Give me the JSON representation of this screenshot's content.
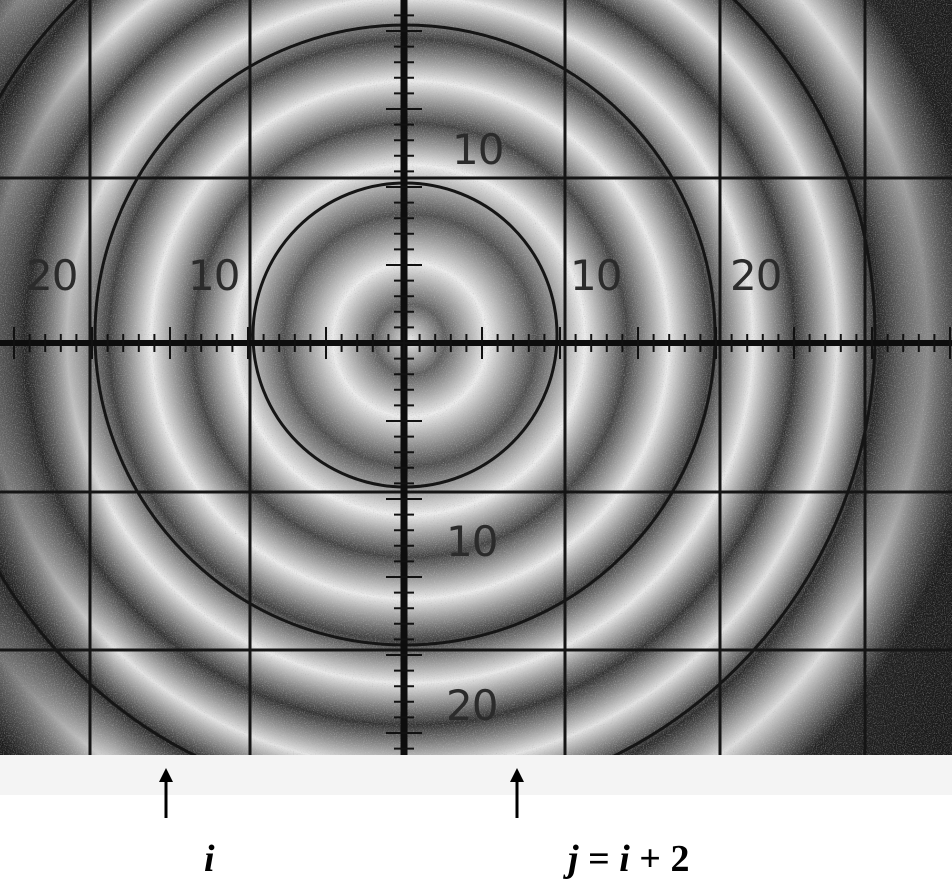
{
  "reticle": {
    "scale_labels": {
      "left_20": "20",
      "left_10": "10",
      "right_10": "10",
      "right_20": "20",
      "top_10": "10",
      "bottom_10": "10",
      "bottom_20": "20"
    }
  },
  "annotations": {
    "left_label_var": "i",
    "right_label_lhs": "j",
    "right_label_eq": " = ",
    "right_label_var": "i",
    "right_label_op": " + ",
    "right_label_num": "2"
  },
  "colors": {
    "ink": "#1a1a1a",
    "paper": "#e8e8e8",
    "background": "#ffffff"
  }
}
